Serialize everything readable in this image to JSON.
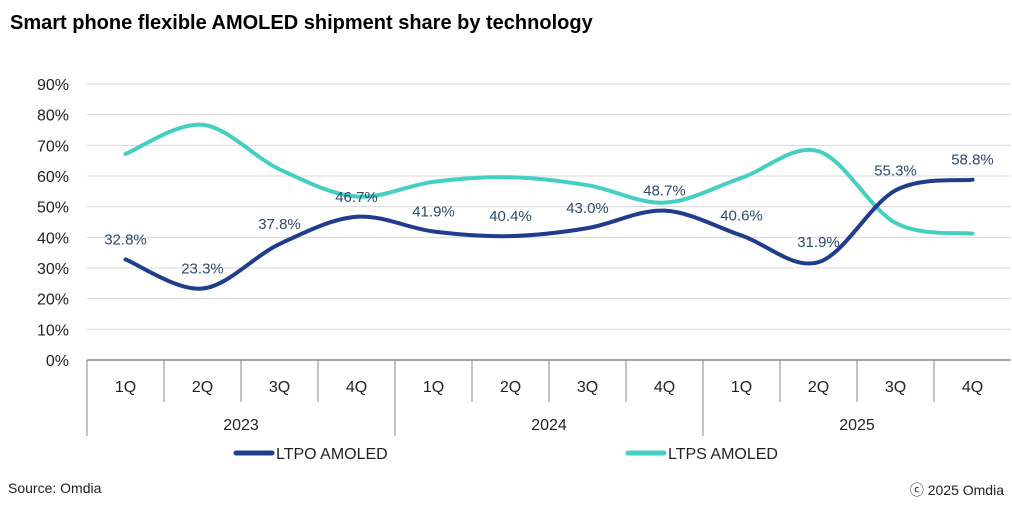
{
  "chart_data": {
    "type": "line",
    "title": "Smart phone flexible AMOLED shipment share by technology",
    "categories": [
      "1Q",
      "2Q",
      "3Q",
      "4Q",
      "1Q",
      "2Q",
      "3Q",
      "4Q",
      "1Q",
      "2Q",
      "3Q",
      "4Q"
    ],
    "groups": [
      {
        "label": "2023",
        "count": 4
      },
      {
        "label": "2024",
        "count": 4
      },
      {
        "label": "2025",
        "count": 4
      }
    ],
    "ylim": [
      0,
      90
    ],
    "yticks": [
      0,
      10,
      20,
      30,
      40,
      50,
      60,
      70,
      80,
      90
    ],
    "ytick_labels": [
      "0%",
      "10%",
      "20%",
      "30%",
      "40%",
      "50%",
      "60%",
      "70%",
      "80%",
      "90%"
    ],
    "grid": "horizontal",
    "legend": "bottom",
    "series": [
      {
        "name": "LTPO AMOLED",
        "color": "#1f3c8f",
        "values": [
          32.8,
          23.3,
          37.8,
          46.7,
          41.9,
          40.4,
          43.0,
          48.7,
          40.6,
          31.9,
          55.3,
          58.8
        ],
        "labels": [
          "32.8%",
          "23.3%",
          "37.8%",
          "46.7%",
          "41.9%",
          "40.4%",
          "43.0%",
          "48.7%",
          "40.6%",
          "31.9%",
          "55.3%",
          "58.8%"
        ]
      },
      {
        "name": "LTPS AMOLED",
        "color": "#45cfc2",
        "values": [
          67.2,
          76.7,
          62.2,
          53.3,
          58.1,
          59.6,
          57.0,
          51.3,
          59.4,
          68.1,
          44.7,
          41.2
        ]
      }
    ],
    "label_color": "#2e4a6b"
  },
  "footer": {
    "source": "Source: Omdia",
    "copyright": "ⓒ 2025 Omdia"
  }
}
